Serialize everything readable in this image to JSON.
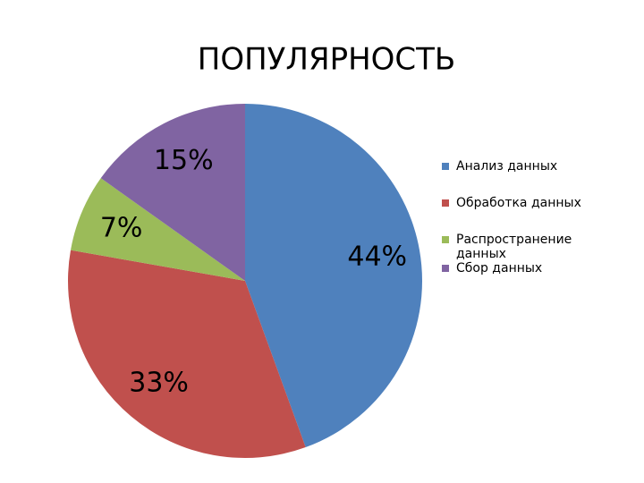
{
  "chart_data": {
    "type": "pie",
    "title": "ПОПУЛЯРНОСТЬ",
    "categories": [
      "Анализ данных",
      "Обработка данных",
      "Распространение данных",
      "Сбор данных"
    ],
    "values": [
      44,
      33,
      7,
      15
    ],
    "value_labels": [
      "44%",
      "33%",
      "7%",
      "15%"
    ],
    "colors": [
      "#4f81bd",
      "#c0504d",
      "#9bbb59",
      "#8064a2"
    ],
    "legend": "right"
  }
}
